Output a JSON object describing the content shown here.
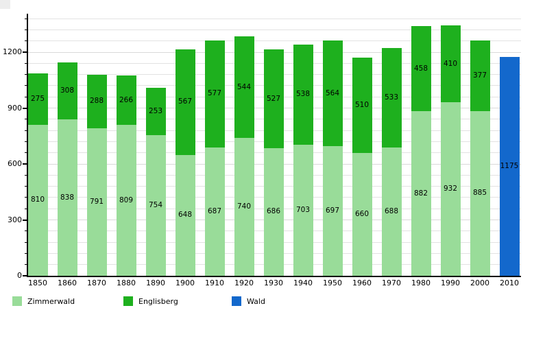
{
  "chart_data": {
    "type": "bar",
    "stacked": true,
    "title": "",
    "xlabel": "",
    "ylabel": "",
    "categories": [
      "1850",
      "1860",
      "1870",
      "1880",
      "1890",
      "1900",
      "1910",
      "1920",
      "1930",
      "1940",
      "1950",
      "1960",
      "1970",
      "1980",
      "1990",
      "2000",
      "2010"
    ],
    "series": [
      {
        "name": "Zimmerwald",
        "color": "#99dc99",
        "values": [
          810,
          838,
          791,
          809,
          754,
          648,
          687,
          740,
          686,
          703,
          697,
          660,
          688,
          882,
          932,
          885,
          null
        ]
      },
      {
        "name": "Englisberg",
        "color": "#1eb01e",
        "values": [
          275,
          308,
          288,
          266,
          253,
          567,
          577,
          544,
          527,
          538,
          564,
          510,
          533,
          458,
          410,
          377,
          null
        ]
      },
      {
        "name": "Wald",
        "color": "#1368cc",
        "values": [
          null,
          null,
          null,
          null,
          null,
          null,
          null,
          null,
          null,
          null,
          null,
          null,
          null,
          null,
          null,
          null,
          1175
        ]
      }
    ],
    "ylim": [
      0,
      1440
    ],
    "yticks": [
      0,
      300,
      600,
      900,
      1200
    ],
    "ytick_minor_step": 60,
    "grid": true,
    "grid_color": "#e2e2e2",
    "grid_color_major": "#d9d9d9",
    "axis_color": "#000000",
    "legend_position": "bottom",
    "legend_items": [
      {
        "label": "Zimmerwald",
        "color": "#99dc99"
      },
      {
        "label": "Englisberg",
        "color": "#1eb01e"
      },
      {
        "label": "Wald",
        "color": "#1368cc"
      }
    ]
  }
}
